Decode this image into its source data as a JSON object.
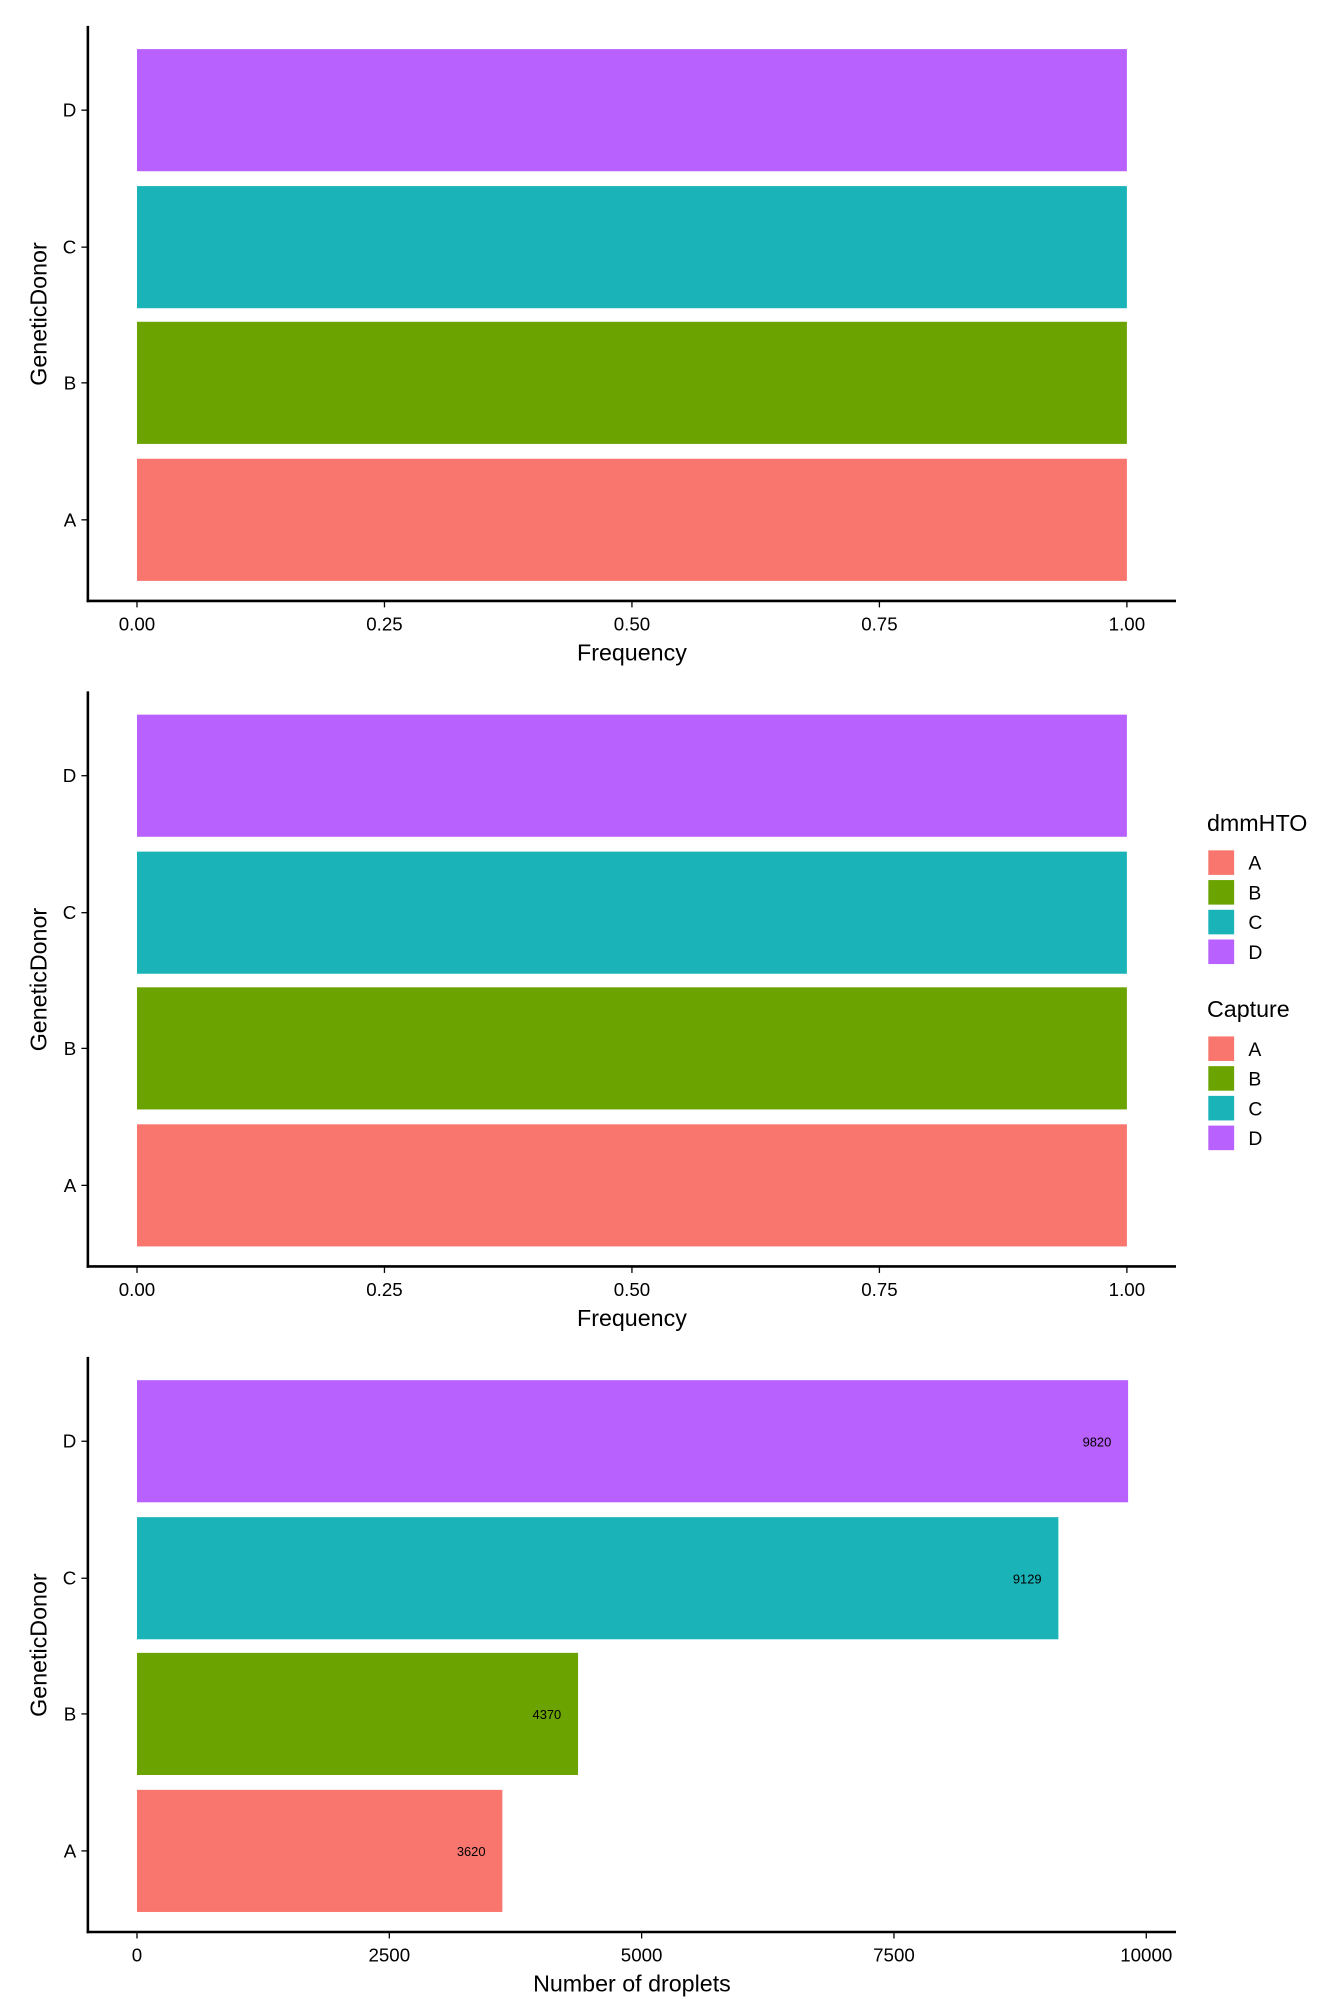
{
  "chart_data": [
    {
      "type": "bar",
      "orientation": "horizontal",
      "categories": [
        "A",
        "B",
        "C",
        "D"
      ],
      "values": [
        1.0,
        1.0,
        1.0,
        1.0
      ],
      "fill_by": "dmmHTO",
      "xlabel": "Frequency",
      "ylabel": "GeneticDonor",
      "xlim": [
        0,
        1
      ],
      "xticks": [
        "0.00",
        "0.25",
        "0.50",
        "0.75",
        "1.00"
      ],
      "xtick_values": [
        0,
        0.25,
        0.5,
        0.75,
        1
      ],
      "grid": false
    },
    {
      "type": "bar",
      "orientation": "horizontal",
      "categories": [
        "A",
        "B",
        "C",
        "D"
      ],
      "values": [
        1.0,
        1.0,
        1.0,
        1.0
      ],
      "fill_by": "Capture",
      "xlabel": "Frequency",
      "ylabel": "GeneticDonor",
      "xlim": [
        0,
        1
      ],
      "xticks": [
        "0.00",
        "0.25",
        "0.50",
        "0.75",
        "1.00"
      ],
      "xtick_values": [
        0,
        0.25,
        0.5,
        0.75,
        1
      ],
      "grid": false
    },
    {
      "type": "bar",
      "orientation": "horizontal",
      "categories": [
        "A",
        "B",
        "C",
        "D"
      ],
      "values": [
        3620,
        4370,
        9129,
        9820
      ],
      "data_labels": [
        "3620",
        "4370",
        "9129",
        "9820"
      ],
      "xlabel": "Number of droplets",
      "ylabel": "GeneticDonor",
      "xlim": [
        0,
        10000
      ],
      "xticks": [
        "0",
        "2500",
        "5000",
        "7500",
        "10000"
      ],
      "xtick_values": [
        0,
        2500,
        5000,
        7500,
        10000
      ],
      "grid": false
    }
  ],
  "colors": {
    "A": "#F8766D",
    "B": "#6BA300",
    "C": "#19B3B8",
    "D": "#B961FF"
  },
  "legends": [
    {
      "title": "dmmHTO",
      "labels": [
        "A",
        "B",
        "C",
        "D"
      ]
    },
    {
      "title": "Capture",
      "labels": [
        "A",
        "B",
        "C",
        "D"
      ]
    }
  ]
}
